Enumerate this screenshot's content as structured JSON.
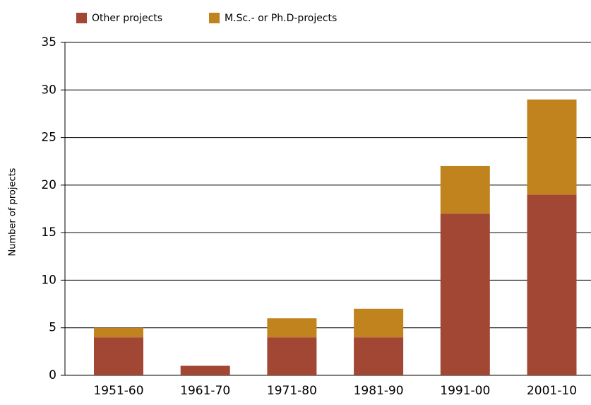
{
  "chart_data": {
    "type": "stacked_bar",
    "categories": [
      "1951-60",
      "1961-70",
      "1971-80",
      "1981-90",
      "1991-00",
      "2001-10"
    ],
    "series": [
      {
        "name": "Other projects",
        "color": "#a34735",
        "values": [
          4,
          1,
          4,
          4,
          17,
          19
        ]
      },
      {
        "name": "M.Sc.- or Ph.D-projects",
        "color": "#c0831e",
        "values": [
          1,
          0,
          2,
          3,
          5,
          10
        ]
      }
    ],
    "y_label": "Number of projects",
    "ylim": [
      0,
      35
    ],
    "yticks": [
      0,
      5,
      10,
      15,
      20,
      25,
      30,
      35
    ],
    "grid": true
  }
}
